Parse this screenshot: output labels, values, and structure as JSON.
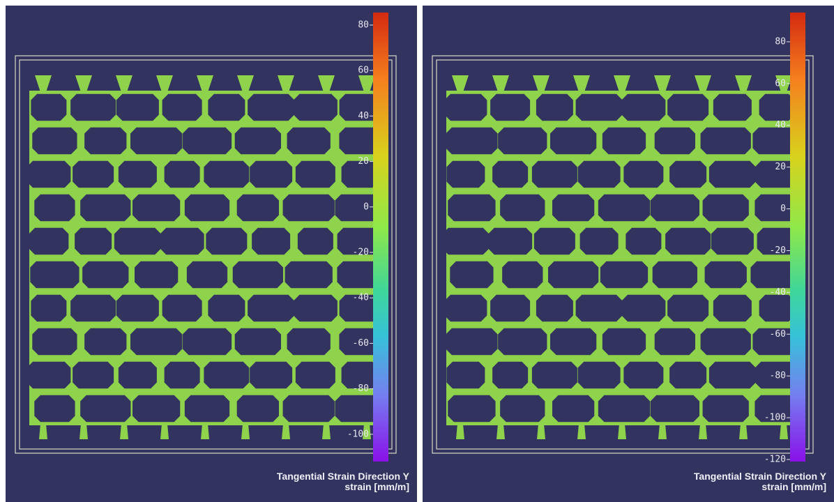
{
  "panels": [
    {
      "colorbar": {
        "range": [
          -112,
          85.5
        ],
        "ticks": [
          80,
          60,
          40,
          20,
          0,
          -20,
          -40,
          -60,
          -80,
          -100
        ]
      },
      "title": "Tangential Strain Direction Y",
      "unit": "strain [mm/m]"
    },
    {
      "colorbar": {
        "range": [
          -121,
          94
        ],
        "ticks": [
          80,
          60,
          40,
          20,
          0,
          -20,
          -40,
          -60,
          -80,
          -100,
          -120
        ]
      },
      "title": "Tangential Strain Direction Y",
      "unit": "strain [mm/m]"
    }
  ]
}
